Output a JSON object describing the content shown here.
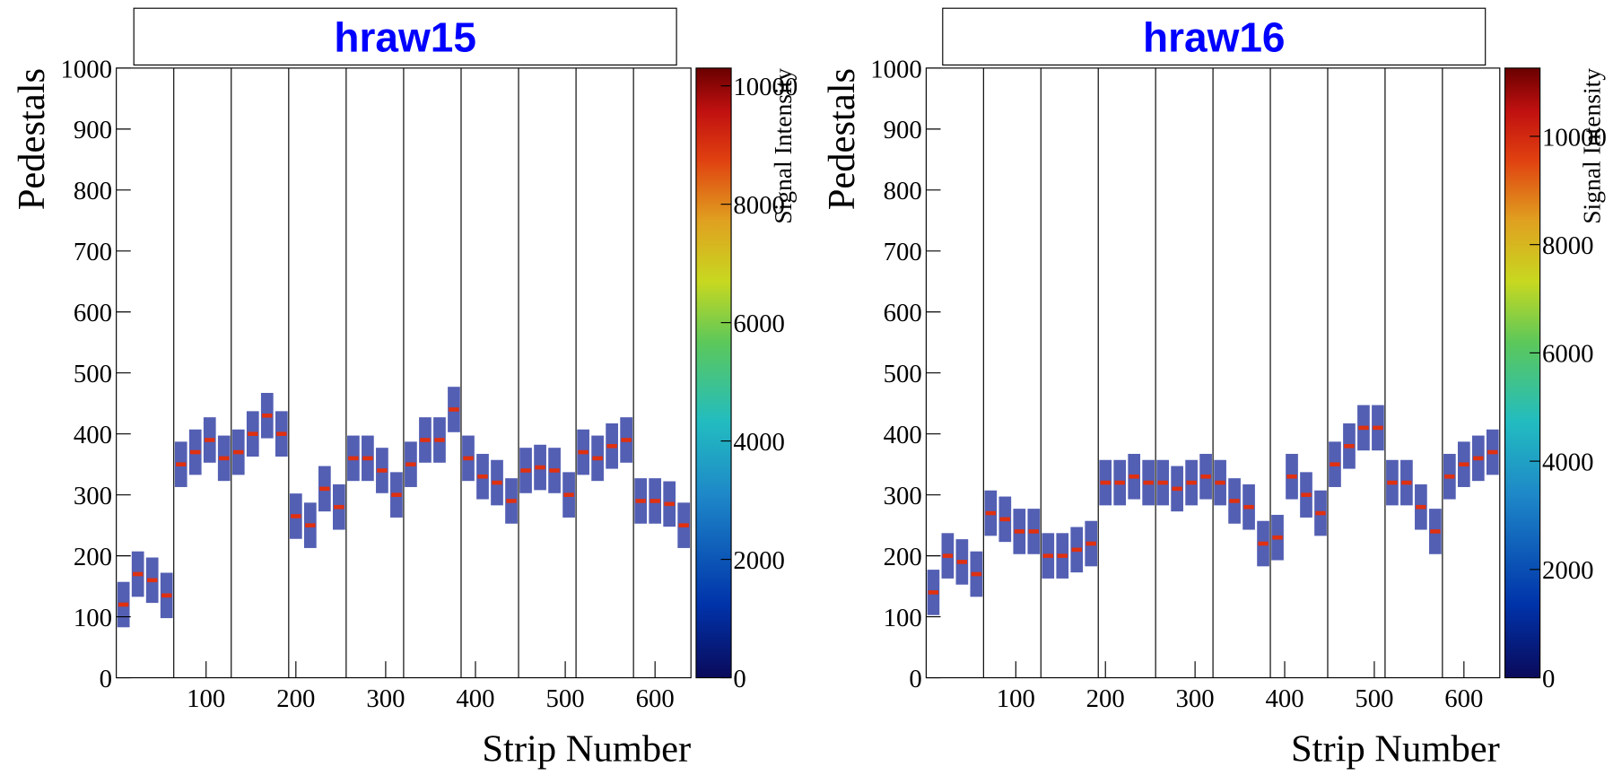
{
  "chart_data": [
    {
      "type": "heatmap",
      "title": "hraw15",
      "x_label": "Strip Number",
      "y_label": "Pedestals",
      "z_label": "Signal Intensity",
      "xlim": [
        0,
        640
      ],
      "xticks": [
        100,
        200,
        300,
        400,
        500,
        600
      ],
      "ylim": [
        0,
        1000
      ],
      "yticks": [
        0,
        100,
        200,
        300,
        400,
        500,
        600,
        700,
        800,
        900,
        1000
      ],
      "zlim": [
        0,
        10300
      ],
      "zticks": [
        0,
        2000,
        4000,
        6000,
        8000,
        10000
      ],
      "x_dividers": [
        64,
        128,
        192,
        256,
        320,
        384,
        448,
        512,
        576
      ],
      "x": [
        8,
        24,
        40,
        56,
        72,
        88,
        104,
        120,
        136,
        152,
        168,
        184,
        200,
        216,
        232,
        248,
        264,
        280,
        296,
        312,
        328,
        344,
        360,
        376,
        392,
        408,
        424,
        440,
        456,
        472,
        488,
        504,
        520,
        536,
        552,
        568,
        584,
        600,
        616,
        632
      ],
      "values": [
        120,
        170,
        160,
        135,
        350,
        370,
        390,
        360,
        370,
        400,
        430,
        400,
        265,
        250,
        310,
        280,
        360,
        360,
        340,
        300,
        350,
        390,
        390,
        440,
        360,
        330,
        320,
        290,
        340,
        345,
        340,
        300,
        370,
        360,
        380,
        390,
        290,
        290,
        285,
        250
      ]
    },
    {
      "type": "heatmap",
      "title": "hraw16",
      "x_label": "Strip Number",
      "y_label": "Pedestals",
      "z_label": "Signal Intensity",
      "xlim": [
        0,
        640
      ],
      "xticks": [
        100,
        200,
        300,
        400,
        500,
        600
      ],
      "ylim": [
        0,
        1000
      ],
      "yticks": [
        0,
        100,
        200,
        300,
        400,
        500,
        600,
        700,
        800,
        900,
        1000
      ],
      "zlim": [
        0,
        11260
      ],
      "zticks": [
        0,
        2000,
        4000,
        6000,
        8000,
        10000
      ],
      "x_dividers": [
        64,
        128,
        192,
        256,
        320,
        384,
        448,
        512,
        576
      ],
      "x": [
        8,
        24,
        40,
        56,
        72,
        88,
        104,
        120,
        136,
        152,
        168,
        184,
        200,
        216,
        232,
        248,
        264,
        280,
        296,
        312,
        328,
        344,
        360,
        376,
        392,
        408,
        424,
        440,
        456,
        472,
        488,
        504,
        520,
        536,
        552,
        568,
        584,
        600,
        616,
        632
      ],
      "values": [
        140,
        200,
        190,
        170,
        270,
        260,
        240,
        240,
        200,
        200,
        210,
        220,
        320,
        320,
        330,
        320,
        320,
        310,
        320,
        330,
        320,
        290,
        280,
        220,
        230,
        330,
        300,
        270,
        350,
        380,
        410,
        410,
        320,
        320,
        280,
        240,
        330,
        350,
        360,
        370
      ]
    }
  ]
}
